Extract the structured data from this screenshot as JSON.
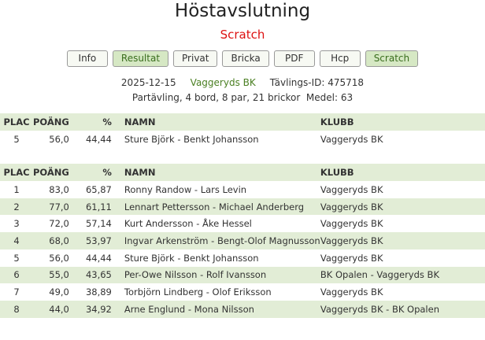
{
  "title": "Höstavslutning",
  "subtitle": "Scratch",
  "buttons": [
    {
      "label": "Info",
      "active": false
    },
    {
      "label": "Resultat",
      "active": true
    },
    {
      "label": "Privat",
      "active": false
    },
    {
      "label": "Bricka",
      "active": false
    },
    {
      "label": "PDF",
      "active": false
    },
    {
      "label": "Hcp",
      "active": false
    },
    {
      "label": "Scratch",
      "active": true
    }
  ],
  "info": {
    "date": "2025-12-15",
    "club": "Vaggeryds BK",
    "comp_id": "Tävlings-ID: 475718",
    "details": "Partävling, 4 bord, 8 par, 21 brickor",
    "average": "Medel: 63"
  },
  "columns": [
    "PLAC",
    "POÄNG",
    "%",
    "NAMN",
    "KLUBB"
  ],
  "highlight": [
    [
      "5",
      "56,0",
      "44,44",
      "Sture Björk - Benkt Johansson",
      "Vaggeryds BK"
    ]
  ],
  "rows": [
    [
      "1",
      "83,0",
      "65,87",
      "Ronny Randow - Lars Levin",
      "Vaggeryds BK"
    ],
    [
      "2",
      "77,0",
      "61,11",
      "Lennart Pettersson - Michael Anderberg",
      "Vaggeryds BK"
    ],
    [
      "3",
      "72,0",
      "57,14",
      "Kurt Andersson - Åke Hessel",
      "Vaggeryds BK"
    ],
    [
      "4",
      "68,0",
      "53,97",
      "Ingvar Arkenström - Bengt-Olof Magnusson",
      "Vaggeryds BK"
    ],
    [
      "5",
      "56,0",
      "44,44",
      "Sture Björk - Benkt Johansson",
      "Vaggeryds BK"
    ],
    [
      "6",
      "55,0",
      "43,65",
      "Per-Owe Nilsson - Rolf Ivansson",
      "BK Opalen - Vaggeryds BK"
    ],
    [
      "7",
      "49,0",
      "38,89",
      "Torbjörn Lindberg - Olof Eriksson",
      "Vaggeryds BK"
    ],
    [
      "8",
      "44,0",
      "34,92",
      "Arne Englund - Mona Nilsson",
      "Vaggeryds BK - BK Opalen"
    ]
  ]
}
